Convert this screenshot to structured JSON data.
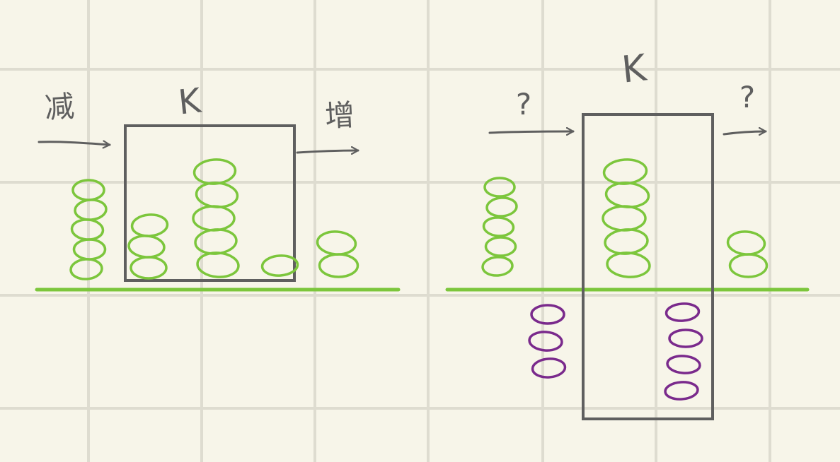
{
  "colors": {
    "background": "#f7f5e9",
    "grid": "#dedcd0",
    "ink": "#5f5f5f",
    "positive": "#7cc63c",
    "negative": "#7a2a8c"
  },
  "left_panel": {
    "window_label": "K",
    "left_arrow_label": "减",
    "right_arrow_label": "增",
    "stacks": [
      {
        "count": 5,
        "sign": "positive",
        "in_window": false
      },
      {
        "count": 3,
        "sign": "positive",
        "in_window": true
      },
      {
        "count": 5,
        "sign": "positive",
        "in_window": true
      },
      {
        "count": 1,
        "sign": "positive",
        "in_window": true
      },
      {
        "count": 2,
        "sign": "positive",
        "in_window": false
      }
    ]
  },
  "right_panel": {
    "window_label": "K",
    "left_arrow_label": "?",
    "right_arrow_label": "?",
    "stacks": [
      {
        "count": 5,
        "sign": "positive",
        "in_window": false
      },
      {
        "count": 3,
        "sign": "negative",
        "in_window": false
      },
      {
        "count": 5,
        "sign": "positive",
        "in_window": true
      },
      {
        "count": 4,
        "sign": "negative",
        "in_window": true
      },
      {
        "count": 2,
        "sign": "positive",
        "in_window": false
      }
    ]
  }
}
